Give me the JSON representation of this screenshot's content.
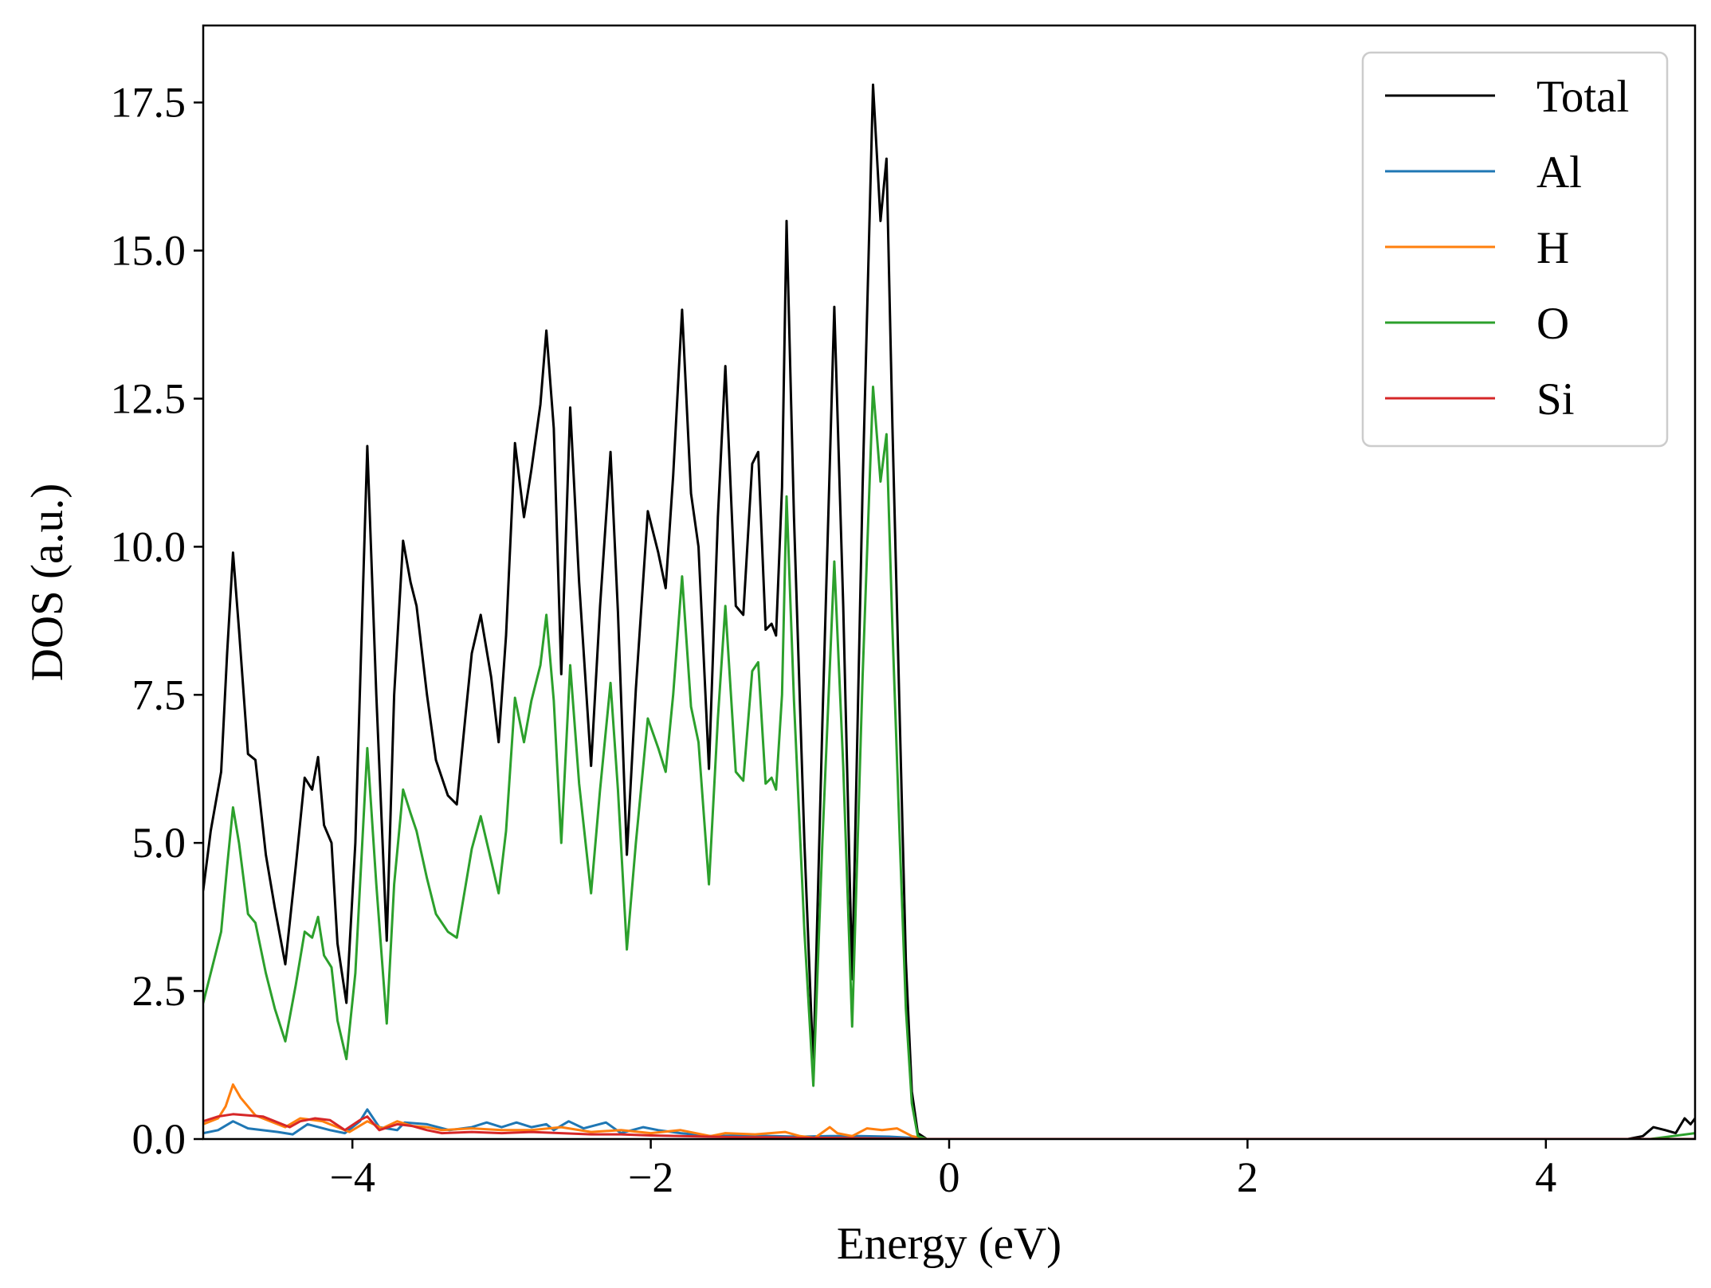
{
  "chart_data": {
    "type": "line",
    "title": "",
    "xlabel": "Energy (eV)",
    "ylabel": "DOS (a.u.)",
    "xlim": [
      -5,
      5
    ],
    "ylim": [
      0,
      18.8
    ],
    "xticks": [
      -4,
      -2,
      0,
      2,
      4
    ],
    "xtick_labels": [
      "−4",
      "−2",
      "0",
      "2",
      "4"
    ],
    "yticks": [
      0,
      2.5,
      5,
      7.5,
      10,
      12.5,
      15,
      17.5
    ],
    "ytick_labels": [
      "0.0",
      "2.5",
      "5.0",
      "7.5",
      "10.0",
      "12.5",
      "15.0",
      "17.5"
    ],
    "grid": false,
    "legend_position": "top-right",
    "series": [
      {
        "name": "Total",
        "color": "#000000",
        "points": [
          [
            -5.0,
            4.2
          ],
          [
            -4.95,
            5.2
          ],
          [
            -4.88,
            6.2
          ],
          [
            -4.84,
            8.2
          ],
          [
            -4.8,
            9.9
          ],
          [
            -4.76,
            8.6
          ],
          [
            -4.7,
            6.5
          ],
          [
            -4.65,
            6.4
          ],
          [
            -4.58,
            4.8
          ],
          [
            -4.52,
            3.9
          ],
          [
            -4.45,
            2.95
          ],
          [
            -4.38,
            4.6
          ],
          [
            -4.32,
            6.1
          ],
          [
            -4.27,
            5.9
          ],
          [
            -4.23,
            6.45
          ],
          [
            -4.19,
            5.3
          ],
          [
            -4.14,
            5.0
          ],
          [
            -4.1,
            3.3
          ],
          [
            -4.04,
            2.3
          ],
          [
            -3.98,
            5.0
          ],
          [
            -3.9,
            11.7
          ],
          [
            -3.84,
            7.5
          ],
          [
            -3.77,
            3.35
          ],
          [
            -3.72,
            7.5
          ],
          [
            -3.66,
            10.1
          ],
          [
            -3.61,
            9.4
          ],
          [
            -3.57,
            9.0
          ],
          [
            -3.5,
            7.5
          ],
          [
            -3.44,
            6.4
          ],
          [
            -3.36,
            5.8
          ],
          [
            -3.3,
            5.65
          ],
          [
            -3.24,
            7.2
          ],
          [
            -3.2,
            8.2
          ],
          [
            -3.14,
            8.85
          ],
          [
            -3.07,
            7.8
          ],
          [
            -3.02,
            6.7
          ],
          [
            -2.97,
            8.5
          ],
          [
            -2.91,
            11.75
          ],
          [
            -2.85,
            10.5
          ],
          [
            -2.8,
            11.3
          ],
          [
            -2.74,
            12.4
          ],
          [
            -2.7,
            13.65
          ],
          [
            -2.65,
            12.0
          ],
          [
            -2.6,
            7.85
          ],
          [
            -2.54,
            12.35
          ],
          [
            -2.48,
            9.4
          ],
          [
            -2.4,
            6.3
          ],
          [
            -2.34,
            9.0
          ],
          [
            -2.27,
            11.6
          ],
          [
            -2.22,
            8.9
          ],
          [
            -2.16,
            4.8
          ],
          [
            -2.1,
            7.6
          ],
          [
            -2.02,
            10.6
          ],
          [
            -1.95,
            9.9
          ],
          [
            -1.9,
            9.3
          ],
          [
            -1.85,
            11.2
          ],
          [
            -1.79,
            14.0
          ],
          [
            -1.73,
            10.9
          ],
          [
            -1.68,
            10.0
          ],
          [
            -1.61,
            6.25
          ],
          [
            -1.55,
            10.5
          ],
          [
            -1.5,
            13.05
          ],
          [
            -1.43,
            9.0
          ],
          [
            -1.38,
            8.85
          ],
          [
            -1.32,
            11.4
          ],
          [
            -1.28,
            11.6
          ],
          [
            -1.23,
            8.6
          ],
          [
            -1.19,
            8.7
          ],
          [
            -1.16,
            8.5
          ],
          [
            -1.12,
            11.0
          ],
          [
            -1.09,
            15.5
          ],
          [
            -1.04,
            10.5
          ],
          [
            -0.97,
            5.0
          ],
          [
            -0.91,
            1.2
          ],
          [
            -0.85,
            7.0
          ],
          [
            -0.77,
            14.05
          ],
          [
            -0.71,
            9.0
          ],
          [
            -0.65,
            2.7
          ],
          [
            -0.58,
            11.0
          ],
          [
            -0.51,
            17.8
          ],
          [
            -0.46,
            15.5
          ],
          [
            -0.42,
            16.55
          ],
          [
            -0.38,
            12.0
          ],
          [
            -0.33,
            7.0
          ],
          [
            -0.29,
            3.0
          ],
          [
            -0.25,
            0.8
          ],
          [
            -0.21,
            0.1
          ],
          [
            -0.15,
            0.0
          ],
          [
            1.0,
            0.0
          ],
          [
            3.0,
            0.0
          ],
          [
            4.55,
            0.0
          ],
          [
            4.65,
            0.05
          ],
          [
            4.72,
            0.2
          ],
          [
            4.8,
            0.15
          ],
          [
            4.87,
            0.1
          ],
          [
            4.93,
            0.35
          ],
          [
            4.97,
            0.25
          ],
          [
            5.0,
            0.35
          ]
        ]
      },
      {
        "name": "Al",
        "color": "#1f77b4",
        "points": [
          [
            -5.0,
            0.1
          ],
          [
            -4.9,
            0.15
          ],
          [
            -4.8,
            0.3
          ],
          [
            -4.7,
            0.18
          ],
          [
            -4.5,
            0.12
          ],
          [
            -4.4,
            0.08
          ],
          [
            -4.3,
            0.25
          ],
          [
            -4.15,
            0.15
          ],
          [
            -4.05,
            0.1
          ],
          [
            -3.95,
            0.3
          ],
          [
            -3.9,
            0.5
          ],
          [
            -3.82,
            0.2
          ],
          [
            -3.7,
            0.15
          ],
          [
            -3.65,
            0.28
          ],
          [
            -3.5,
            0.25
          ],
          [
            -3.35,
            0.15
          ],
          [
            -3.2,
            0.2
          ],
          [
            -3.1,
            0.28
          ],
          [
            -3.0,
            0.2
          ],
          [
            -2.9,
            0.28
          ],
          [
            -2.8,
            0.2
          ],
          [
            -2.7,
            0.25
          ],
          [
            -2.65,
            0.15
          ],
          [
            -2.55,
            0.3
          ],
          [
            -2.45,
            0.18
          ],
          [
            -2.3,
            0.28
          ],
          [
            -2.2,
            0.1
          ],
          [
            -2.05,
            0.2
          ],
          [
            -1.95,
            0.15
          ],
          [
            -1.8,
            0.1
          ],
          [
            -1.6,
            0.05
          ],
          [
            -1.4,
            0.06
          ],
          [
            -1.2,
            0.05
          ],
          [
            -1.0,
            0.04
          ],
          [
            -0.8,
            0.05
          ],
          [
            -0.6,
            0.05
          ],
          [
            -0.4,
            0.04
          ],
          [
            -0.25,
            0.02
          ],
          [
            -0.15,
            0.0
          ],
          [
            5.0,
            0.0
          ]
        ]
      },
      {
        "name": "H",
        "color": "#ff7f0e",
        "points": [
          [
            -5.0,
            0.25
          ],
          [
            -4.9,
            0.35
          ],
          [
            -4.85,
            0.55
          ],
          [
            -4.8,
            0.92
          ],
          [
            -4.75,
            0.7
          ],
          [
            -4.65,
            0.4
          ],
          [
            -4.55,
            0.3
          ],
          [
            -4.45,
            0.2
          ],
          [
            -4.35,
            0.35
          ],
          [
            -4.2,
            0.3
          ],
          [
            -4.1,
            0.2
          ],
          [
            -4.02,
            0.12
          ],
          [
            -3.9,
            0.3
          ],
          [
            -3.8,
            0.18
          ],
          [
            -3.7,
            0.3
          ],
          [
            -3.6,
            0.22
          ],
          [
            -3.5,
            0.2
          ],
          [
            -3.4,
            0.15
          ],
          [
            -3.2,
            0.18
          ],
          [
            -3.0,
            0.15
          ],
          [
            -2.8,
            0.15
          ],
          [
            -2.6,
            0.2
          ],
          [
            -2.4,
            0.12
          ],
          [
            -2.2,
            0.15
          ],
          [
            -2.0,
            0.1
          ],
          [
            -1.8,
            0.15
          ],
          [
            -1.6,
            0.05
          ],
          [
            -1.5,
            0.1
          ],
          [
            -1.3,
            0.08
          ],
          [
            -1.1,
            0.12
          ],
          [
            -1.0,
            0.05
          ],
          [
            -0.9,
            0.02
          ],
          [
            -0.8,
            0.2
          ],
          [
            -0.75,
            0.1
          ],
          [
            -0.65,
            0.05
          ],
          [
            -0.55,
            0.18
          ],
          [
            -0.45,
            0.15
          ],
          [
            -0.35,
            0.18
          ],
          [
            -0.25,
            0.05
          ],
          [
            -0.15,
            0.0
          ],
          [
            5.0,
            0.0
          ]
        ]
      },
      {
        "name": "O",
        "color": "#2ca02c",
        "points": [
          [
            -5.0,
            2.3
          ],
          [
            -4.95,
            2.8
          ],
          [
            -4.88,
            3.5
          ],
          [
            -4.84,
            4.6
          ],
          [
            -4.8,
            5.6
          ],
          [
            -4.76,
            5.0
          ],
          [
            -4.7,
            3.8
          ],
          [
            -4.65,
            3.65
          ],
          [
            -4.58,
            2.8
          ],
          [
            -4.52,
            2.2
          ],
          [
            -4.45,
            1.65
          ],
          [
            -4.38,
            2.6
          ],
          [
            -4.32,
            3.5
          ],
          [
            -4.27,
            3.4
          ],
          [
            -4.23,
            3.75
          ],
          [
            -4.19,
            3.1
          ],
          [
            -4.14,
            2.9
          ],
          [
            -4.1,
            2.0
          ],
          [
            -4.04,
            1.35
          ],
          [
            -3.98,
            2.8
          ],
          [
            -3.9,
            6.6
          ],
          [
            -3.84,
            4.3
          ],
          [
            -3.77,
            1.95
          ],
          [
            -3.72,
            4.3
          ],
          [
            -3.66,
            5.9
          ],
          [
            -3.61,
            5.5
          ],
          [
            -3.57,
            5.2
          ],
          [
            -3.5,
            4.4
          ],
          [
            -3.44,
            3.8
          ],
          [
            -3.36,
            3.5
          ],
          [
            -3.3,
            3.4
          ],
          [
            -3.24,
            4.3
          ],
          [
            -3.2,
            4.9
          ],
          [
            -3.14,
            5.45
          ],
          [
            -3.07,
            4.7
          ],
          [
            -3.02,
            4.15
          ],
          [
            -2.97,
            5.2
          ],
          [
            -2.91,
            7.45
          ],
          [
            -2.85,
            6.7
          ],
          [
            -2.8,
            7.4
          ],
          [
            -2.74,
            8.0
          ],
          [
            -2.7,
            8.85
          ],
          [
            -2.65,
            7.4
          ],
          [
            -2.6,
            5.0
          ],
          [
            -2.54,
            8.0
          ],
          [
            -2.48,
            6.0
          ],
          [
            -2.4,
            4.15
          ],
          [
            -2.34,
            5.9
          ],
          [
            -2.27,
            7.7
          ],
          [
            -2.22,
            5.9
          ],
          [
            -2.16,
            3.2
          ],
          [
            -2.1,
            5.0
          ],
          [
            -2.02,
            7.1
          ],
          [
            -1.95,
            6.6
          ],
          [
            -1.9,
            6.2
          ],
          [
            -1.85,
            7.5
          ],
          [
            -1.79,
            9.5
          ],
          [
            -1.73,
            7.3
          ],
          [
            -1.68,
            6.7
          ],
          [
            -1.61,
            4.3
          ],
          [
            -1.55,
            7.1
          ],
          [
            -1.5,
            9.0
          ],
          [
            -1.43,
            6.2
          ],
          [
            -1.38,
            6.05
          ],
          [
            -1.32,
            7.9
          ],
          [
            -1.28,
            8.05
          ],
          [
            -1.23,
            6.0
          ],
          [
            -1.19,
            6.1
          ],
          [
            -1.16,
            5.9
          ],
          [
            -1.12,
            7.5
          ],
          [
            -1.09,
            10.85
          ],
          [
            -1.04,
            7.4
          ],
          [
            -0.97,
            3.5
          ],
          [
            -0.91,
            0.9
          ],
          [
            -0.85,
            5.0
          ],
          [
            -0.77,
            9.75
          ],
          [
            -0.71,
            6.3
          ],
          [
            -0.65,
            1.9
          ],
          [
            -0.58,
            7.8
          ],
          [
            -0.51,
            12.7
          ],
          [
            -0.46,
            11.1
          ],
          [
            -0.42,
            11.9
          ],
          [
            -0.38,
            8.6
          ],
          [
            -0.33,
            5.0
          ],
          [
            -0.29,
            2.2
          ],
          [
            -0.25,
            0.6
          ],
          [
            -0.21,
            0.05
          ],
          [
            -0.15,
            0.0
          ],
          [
            4.7,
            0.0
          ],
          [
            4.85,
            0.05
          ],
          [
            5.0,
            0.1
          ]
        ]
      },
      {
        "name": "Si",
        "color": "#d62728",
        "points": [
          [
            -5.0,
            0.3
          ],
          [
            -4.9,
            0.38
          ],
          [
            -4.8,
            0.42
          ],
          [
            -4.7,
            0.4
          ],
          [
            -4.6,
            0.38
          ],
          [
            -4.5,
            0.28
          ],
          [
            -4.42,
            0.2
          ],
          [
            -4.35,
            0.3
          ],
          [
            -4.25,
            0.35
          ],
          [
            -4.15,
            0.32
          ],
          [
            -4.05,
            0.15
          ],
          [
            -3.95,
            0.32
          ],
          [
            -3.9,
            0.38
          ],
          [
            -3.82,
            0.15
          ],
          [
            -3.7,
            0.25
          ],
          [
            -3.6,
            0.22
          ],
          [
            -3.5,
            0.15
          ],
          [
            -3.4,
            0.1
          ],
          [
            -3.2,
            0.12
          ],
          [
            -3.0,
            0.1
          ],
          [
            -2.8,
            0.12
          ],
          [
            -2.6,
            0.1
          ],
          [
            -2.4,
            0.08
          ],
          [
            -2.2,
            0.08
          ],
          [
            -2.0,
            0.06
          ],
          [
            -1.8,
            0.05
          ],
          [
            -1.6,
            0.04
          ],
          [
            -1.4,
            0.03
          ],
          [
            -1.2,
            0.03
          ],
          [
            -1.0,
            0.02
          ],
          [
            -0.8,
            0.02
          ],
          [
            -0.5,
            0.01
          ],
          [
            -0.2,
            0.0
          ],
          [
            5.0,
            0.0
          ]
        ]
      }
    ]
  }
}
